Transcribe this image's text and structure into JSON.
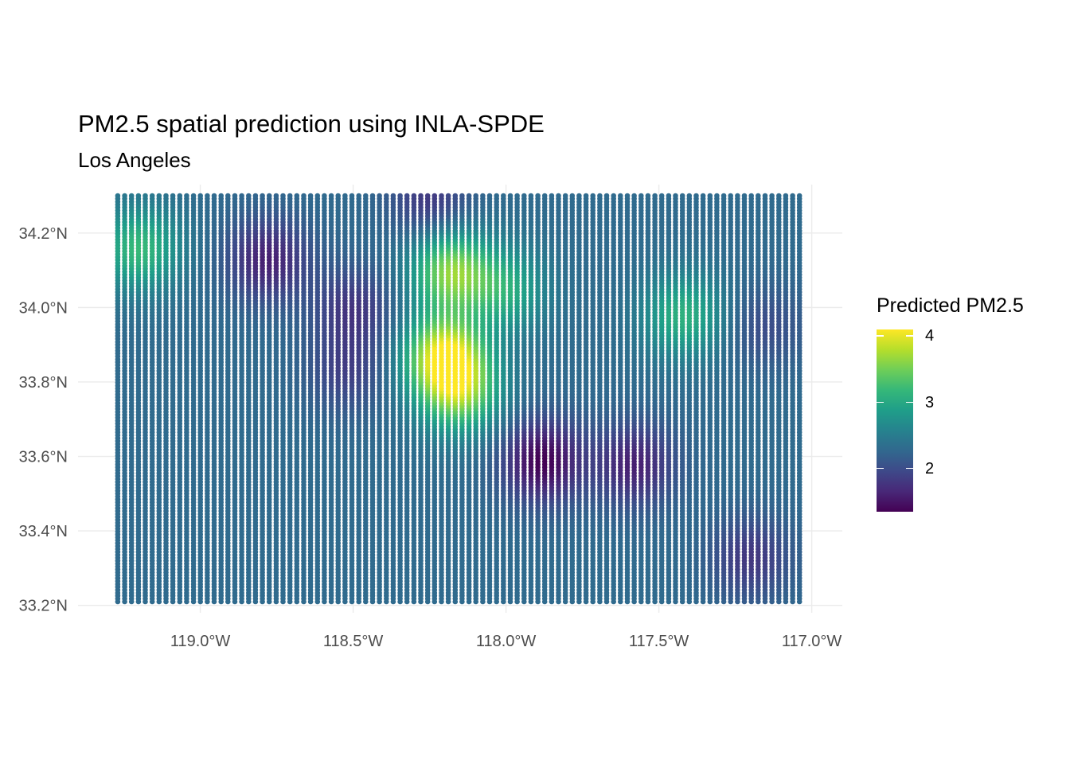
{
  "chart_data": {
    "type": "heatmap",
    "title": "PM2.5 spatial prediction using INLA-SPDE",
    "subtitle": "Los Angeles",
    "xlabel": "",
    "ylabel": "",
    "x_range": [
      -119.27,
      -117.04
    ],
    "y_range": [
      33.21,
      34.3
    ],
    "xlim": [
      -119.4,
      -116.9
    ],
    "ylim": [
      33.18,
      34.33
    ],
    "x_ticks": [
      {
        "value": -119.0,
        "label": "119.0°W"
      },
      {
        "value": -118.5,
        "label": "118.5°W"
      },
      {
        "value": -118.0,
        "label": "118.0°W"
      },
      {
        "value": -117.5,
        "label": "117.5°W"
      },
      {
        "value": -117.0,
        "label": "117.0°W"
      }
    ],
    "y_ticks": [
      {
        "value": 33.2,
        "label": "33.2°N"
      },
      {
        "value": 33.4,
        "label": "33.4°N"
      },
      {
        "value": 33.6,
        "label": "33.6°N"
      },
      {
        "value": 33.8,
        "label": "33.8°N"
      },
      {
        "value": 34.0,
        "label": "34.0°N"
      },
      {
        "value": 34.2,
        "label": "34.2°N"
      }
    ],
    "grid": true,
    "baseline_value": 2.3,
    "hotspots": [
      {
        "lon": -118.2,
        "lat": 33.87,
        "value": 4.0
      },
      {
        "lon": -118.18,
        "lat": 34.1,
        "value": 3.6
      },
      {
        "lon": -118.15,
        "lat": 33.77,
        "value": 3.4
      },
      {
        "lon": -119.2,
        "lat": 34.16,
        "value": 3.2
      },
      {
        "lon": -117.42,
        "lat": 33.98,
        "value": 3.1
      },
      {
        "lon": -118.0,
        "lat": 34.05,
        "value": 3.0
      },
      {
        "lon": -117.88,
        "lat": 33.59,
        "value": 1.35
      },
      {
        "lon": -118.78,
        "lat": 34.13,
        "value": 1.6
      },
      {
        "lon": -118.5,
        "lat": 34.0,
        "value": 1.8
      },
      {
        "lon": -117.58,
        "lat": 33.58,
        "value": 1.6
      },
      {
        "lon": -117.2,
        "lat": 33.33,
        "value": 1.8
      },
      {
        "lon": -118.25,
        "lat": 34.29,
        "value": 1.8
      },
      {
        "lon": -118.52,
        "lat": 33.83,
        "value": 1.9
      },
      {
        "lon": -117.15,
        "lat": 33.95,
        "value": 2.0
      }
    ],
    "colorscale": "viridis",
    "colors": [
      "#440154",
      "#482878",
      "#3e4989",
      "#31688e",
      "#26828e",
      "#1f9e89",
      "#35b779",
      "#6ece58",
      "#b5de2b",
      "#fde725"
    ],
    "legend": {
      "title": "Predicted PM2.5",
      "position": "right",
      "min": 1.35,
      "max": 4.1,
      "ticks": [
        {
          "value": 4,
          "label": "4"
        },
        {
          "value": 3,
          "label": "3"
        },
        {
          "value": 2,
          "label": "2"
        }
      ]
    }
  }
}
